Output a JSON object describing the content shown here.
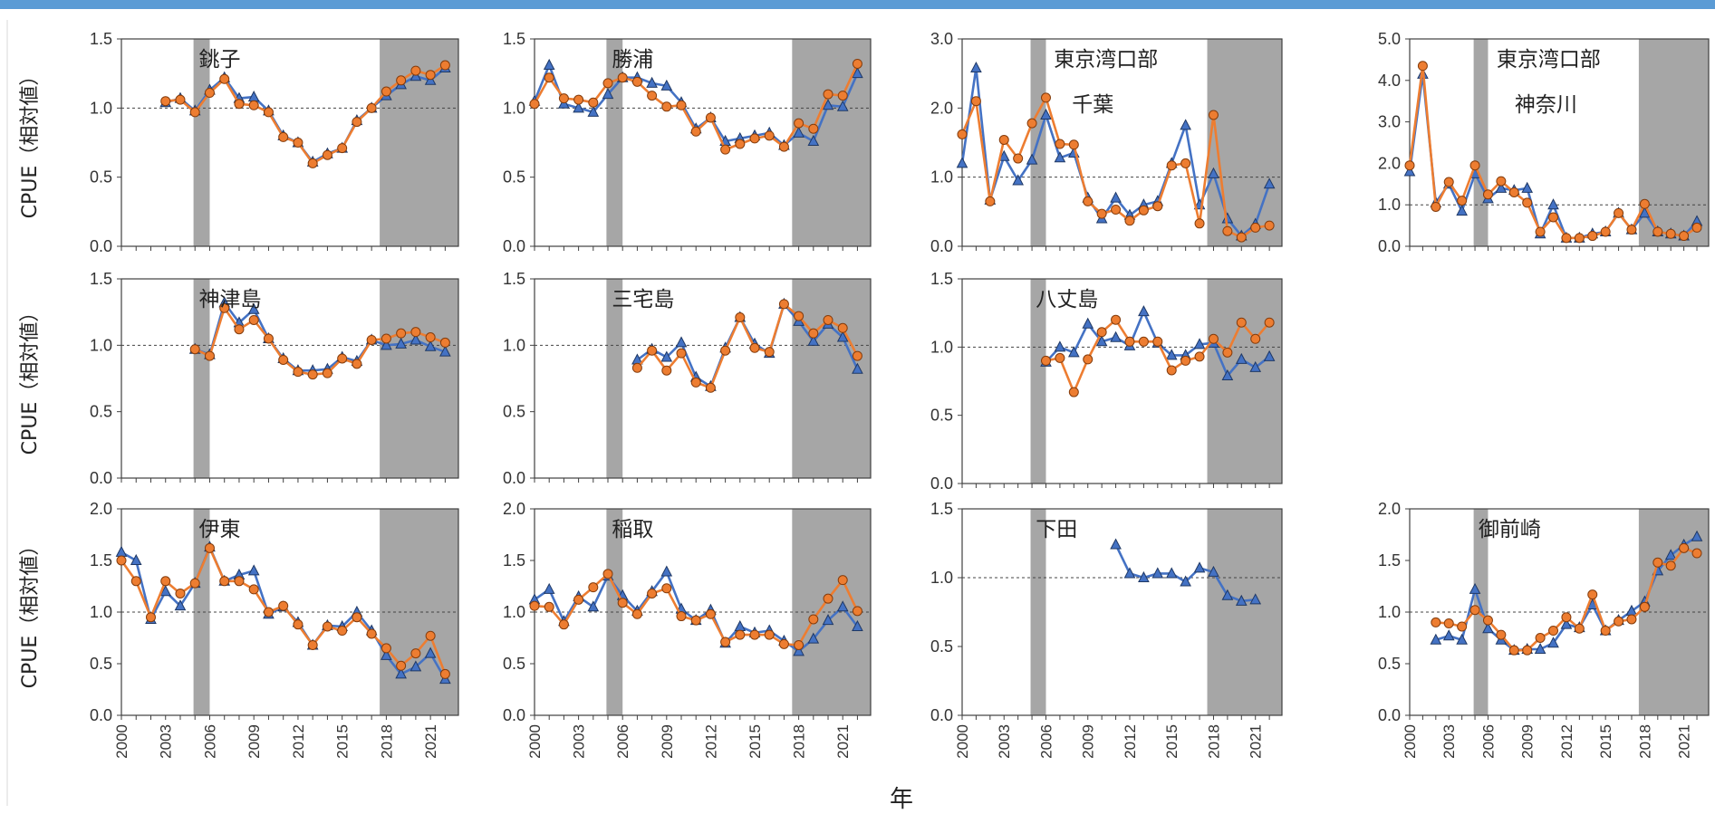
{
  "x_axis_label": "年",
  "y_axis_label": "CPUE（相対値）",
  "colors": {
    "blue": "#4472c4",
    "orange": "#ed7d31",
    "shade": "#a6a6a6"
  },
  "chart_data": [
    {
      "type": "line",
      "title": "銚子",
      "ylim": [
        0,
        1.5
      ],
      "yticks": [
        "0.0",
        "0.5",
        "1.0",
        "1.5"
      ],
      "xticks": [
        "2000",
        "2003",
        "2006",
        "2009",
        "2012",
        "2015",
        "2018",
        "2021"
      ],
      "x": [
        2000,
        2001,
        2002,
        2003,
        2004,
        2005,
        2006,
        2007,
        2008,
        2009,
        2010,
        2011,
        2012,
        2013,
        2014,
        2015,
        2016,
        2017,
        2018,
        2019,
        2020,
        2021,
        2022
      ],
      "series": [
        {
          "values": [
            null,
            null,
            null,
            1.04,
            1.07,
            0.98,
            1.13,
            1.22,
            1.07,
            1.08,
            0.98,
            0.8,
            0.75,
            0.61,
            0.67,
            0.71,
            0.91,
            1.0,
            1.09,
            1.17,
            1.23,
            1.2,
            1.29
          ]
        },
        {
          "values": [
            null,
            null,
            null,
            1.05,
            1.06,
            0.97,
            1.11,
            1.21,
            1.03,
            1.02,
            0.97,
            0.79,
            0.75,
            0.6,
            0.66,
            0.71,
            0.9,
            1.0,
            1.12,
            1.2,
            1.27,
            1.24,
            1.31
          ]
        }
      ]
    },
    {
      "type": "line",
      "title": "勝浦",
      "ylim": [
        0,
        1.5
      ],
      "yticks": [
        "0.0",
        "0.5",
        "1.0",
        "1.5"
      ],
      "xticks": [
        "2000",
        "2003",
        "2006",
        "2009",
        "2012",
        "2015",
        "2018",
        "2021"
      ],
      "x": [
        2000,
        2001,
        2002,
        2003,
        2004,
        2005,
        2006,
        2007,
        2008,
        2009,
        2010,
        2011,
        2012,
        2013,
        2014,
        2015,
        2016,
        2017,
        2018,
        2019,
        2020,
        2021,
        2022
      ],
      "series": [
        {
          "values": [
            1.05,
            1.31,
            1.03,
            1.0,
            0.97,
            1.1,
            1.22,
            1.22,
            1.18,
            1.16,
            1.04,
            0.85,
            0.93,
            0.76,
            0.78,
            0.8,
            0.82,
            0.73,
            0.82,
            0.76,
            1.02,
            1.01,
            1.25
          ]
        },
        {
          "values": [
            1.03,
            1.22,
            1.07,
            1.06,
            1.04,
            1.18,
            1.22,
            1.19,
            1.09,
            1.01,
            1.02,
            0.83,
            0.93,
            0.7,
            0.74,
            0.78,
            0.8,
            0.72,
            0.89,
            0.85,
            1.1,
            1.09,
            1.32
          ]
        }
      ]
    },
    {
      "type": "line",
      "title": "東京湾口部",
      "subtitle": "千葉",
      "ylim": [
        0,
        3.0
      ],
      "yticks": [
        "0.0",
        "1.0",
        "2.0",
        "3.0"
      ],
      "xticks": [
        "2000",
        "2003",
        "2006",
        "2009",
        "2012",
        "2015",
        "2018",
        "2021"
      ],
      "x": [
        2000,
        2001,
        2002,
        2003,
        2004,
        2005,
        2006,
        2007,
        2008,
        2009,
        2010,
        2011,
        2012,
        2013,
        2014,
        2015,
        2016,
        2017,
        2018,
        2019,
        2020,
        2021,
        2022
      ],
      "series": [
        {
          "values": [
            1.2,
            2.58,
            0.67,
            1.3,
            0.95,
            1.25,
            1.9,
            1.28,
            1.35,
            0.7,
            0.4,
            0.7,
            0.45,
            0.6,
            0.65,
            1.2,
            1.75,
            0.6,
            1.05,
            0.4,
            0.15,
            0.32,
            0.9
          ]
        },
        {
          "values": [
            1.62,
            2.1,
            0.65,
            1.54,
            1.27,
            1.78,
            2.15,
            1.48,
            1.47,
            0.65,
            0.47,
            0.53,
            0.37,
            0.52,
            0.58,
            1.17,
            1.2,
            0.33,
            1.9,
            0.22,
            0.13,
            0.27,
            0.3
          ]
        }
      ]
    },
    {
      "type": "line",
      "title": "東京湾口部",
      "subtitle": "神奈川",
      "ylim": [
        0,
        5.0
      ],
      "yticks": [
        "0.0",
        "1.0",
        "2.0",
        "3.0",
        "4.0",
        "5.0"
      ],
      "xticks": [
        "2000",
        "2003",
        "2006",
        "2009",
        "2012",
        "2015",
        "2018",
        "2021"
      ],
      "x": [
        2000,
        2001,
        2002,
        2003,
        2004,
        2005,
        2006,
        2007,
        2008,
        2009,
        2010,
        2011,
        2012,
        2013,
        2014,
        2015,
        2016,
        2017,
        2018,
        2019,
        2020,
        2021,
        2022
      ],
      "series": [
        {
          "values": [
            1.8,
            4.15,
            1.05,
            1.5,
            0.85,
            1.75,
            1.15,
            1.4,
            1.35,
            1.4,
            0.3,
            1.0,
            0.2,
            0.2,
            0.3,
            0.35,
            0.8,
            0.4,
            0.8,
            0.35,
            0.3,
            0.25,
            0.6
          ]
        },
        {
          "values": [
            1.95,
            4.35,
            0.95,
            1.55,
            1.1,
            1.95,
            1.25,
            1.57,
            1.3,
            1.05,
            0.35,
            0.7,
            0.2,
            0.2,
            0.25,
            0.35,
            0.8,
            0.4,
            1.02,
            0.35,
            0.3,
            0.25,
            0.45
          ]
        }
      ]
    },
    {
      "type": "line",
      "title": "神津島",
      "ylim": [
        0,
        1.5
      ],
      "yticks": [
        "0.0",
        "0.5",
        "1.0",
        "1.5"
      ],
      "xticks": [
        "2000",
        "2003",
        "2006",
        "2009",
        "2012",
        "2015",
        "2018",
        "2021"
      ],
      "x": [
        2000,
        2001,
        2002,
        2003,
        2004,
        2005,
        2006,
        2007,
        2008,
        2009,
        2010,
        2011,
        2012,
        2013,
        2014,
        2015,
        2016,
        2017,
        2018,
        2019,
        2020,
        2021,
        2022
      ],
      "series": [
        {
          "values": [
            null,
            null,
            null,
            null,
            null,
            0.97,
            0.93,
            1.32,
            1.17,
            1.27,
            1.05,
            0.9,
            0.81,
            0.81,
            0.82,
            0.91,
            0.88,
            1.04,
            1.0,
            1.01,
            1.04,
            0.99,
            0.95
          ]
        },
        {
          "values": [
            null,
            null,
            null,
            null,
            null,
            0.97,
            0.92,
            1.28,
            1.12,
            1.19,
            1.05,
            0.89,
            0.8,
            0.78,
            0.79,
            0.9,
            0.86,
            1.04,
            1.05,
            1.09,
            1.1,
            1.06,
            1.02
          ]
        }
      ]
    },
    {
      "type": "line",
      "title": "三宅島",
      "ylim": [
        0,
        1.5
      ],
      "yticks": [
        "0.0",
        "0.5",
        "1.0",
        "1.5"
      ],
      "xticks": [
        "2000",
        "2003",
        "2006",
        "2009",
        "2012",
        "2015",
        "2018",
        "2021"
      ],
      "x": [
        2000,
        2001,
        2002,
        2003,
        2004,
        2005,
        2006,
        2007,
        2008,
        2009,
        2010,
        2011,
        2012,
        2013,
        2014,
        2015,
        2016,
        2017,
        2018,
        2019,
        2020,
        2021,
        2022
      ],
      "series": [
        {
          "values": [
            null,
            null,
            null,
            null,
            null,
            null,
            null,
            0.89,
            0.97,
            0.91,
            1.02,
            0.76,
            0.69,
            0.98,
            1.21,
            1.01,
            0.94,
            1.31,
            1.18,
            1.03,
            1.16,
            1.06,
            0.82
          ]
        },
        {
          "values": [
            null,
            null,
            null,
            null,
            null,
            null,
            null,
            0.83,
            0.96,
            0.81,
            0.94,
            0.72,
            0.68,
            0.96,
            1.21,
            0.98,
            0.95,
            1.31,
            1.22,
            1.09,
            1.19,
            1.13,
            0.92
          ]
        }
      ]
    },
    {
      "type": "line",
      "title": "八丈島",
      "ylim": [
        0,
        1.5
      ],
      "yticks": [
        "0.0",
        "0.5",
        "1.0",
        "1.5"
      ],
      "xticks": [
        "2000",
        "2003",
        "2006",
        "2009",
        "2012",
        "2015",
        "2018",
        "2021"
      ],
      "x": [
        2000,
        2001,
        2002,
        2003,
        2004,
        2005,
        2006,
        2007,
        2008,
        2009,
        2010,
        2011,
        2012,
        2013,
        2014,
        2015,
        2016,
        2017,
        2018,
        2019,
        2020,
        2021,
        2022
      ],
      "series": [
        {
          "values": [
            null,
            null,
            null,
            null,
            null,
            null,
            0.89,
            1.0,
            0.96,
            1.17,
            1.04,
            1.07,
            1.01,
            1.26,
            1.03,
            0.94,
            0.94,
            1.02,
            1.03,
            0.79,
            0.91,
            0.85,
            0.93
          ]
        },
        {
          "values": [
            null,
            null,
            null,
            null,
            null,
            null,
            0.9,
            0.92,
            0.67,
            0.91,
            1.11,
            1.2,
            1.04,
            1.04,
            1.04,
            0.83,
            0.9,
            0.93,
            1.06,
            0.96,
            1.18,
            1.06,
            1.18
          ]
        }
      ]
    },
    {
      "type": "line",
      "title": "伊東",
      "ylim": [
        0,
        2.0
      ],
      "yticks": [
        "0.0",
        "0.5",
        "1.0",
        "1.5",
        "2.0"
      ],
      "xticks": [
        "2000",
        "2003",
        "2006",
        "2009",
        "2012",
        "2015",
        "2018",
        "2021"
      ],
      "x": [
        2000,
        2001,
        2002,
        2003,
        2004,
        2005,
        2006,
        2007,
        2008,
        2009,
        2010,
        2011,
        2012,
        2013,
        2014,
        2015,
        2016,
        2017,
        2018,
        2019,
        2020,
        2021,
        2022
      ],
      "series": [
        {
          "values": [
            1.58,
            1.5,
            0.93,
            1.2,
            1.06,
            1.28,
            1.63,
            1.3,
            1.36,
            1.4,
            0.98,
            1.05,
            0.9,
            0.68,
            0.87,
            0.86,
            1.0,
            0.82,
            0.58,
            0.4,
            0.47,
            0.6,
            0.35
          ]
        },
        {
          "values": [
            1.5,
            1.3,
            0.95,
            1.3,
            1.18,
            1.28,
            1.62,
            1.3,
            1.3,
            1.22,
            1.0,
            1.06,
            0.88,
            0.68,
            0.86,
            0.82,
            0.95,
            0.79,
            0.65,
            0.48,
            0.6,
            0.77,
            0.4
          ]
        }
      ]
    },
    {
      "type": "line",
      "title": "稲取",
      "ylim": [
        0,
        2.0
      ],
      "yticks": [
        "0.0",
        "0.5",
        "1.0",
        "1.5",
        "2.0"
      ],
      "xticks": [
        "2000",
        "2003",
        "2006",
        "2009",
        "2012",
        "2015",
        "2018",
        "2021"
      ],
      "x": [
        2000,
        2001,
        2002,
        2003,
        2004,
        2005,
        2006,
        2007,
        2008,
        2009,
        2010,
        2011,
        2012,
        2013,
        2014,
        2015,
        2016,
        2017,
        2018,
        2019,
        2020,
        2021,
        2022
      ],
      "series": [
        {
          "values": [
            1.12,
            1.22,
            0.91,
            1.15,
            1.05,
            1.35,
            1.16,
            1.01,
            1.2,
            1.39,
            1.03,
            0.92,
            1.02,
            0.7,
            0.86,
            0.8,
            0.82,
            0.72,
            0.62,
            0.74,
            0.92,
            1.05,
            0.86
          ]
        },
        {
          "values": [
            1.06,
            1.05,
            0.88,
            1.12,
            1.24,
            1.37,
            1.09,
            0.98,
            1.18,
            1.23,
            0.96,
            0.92,
            0.98,
            0.71,
            0.78,
            0.78,
            0.78,
            0.69,
            0.68,
            0.93,
            1.13,
            1.31,
            1.01
          ]
        }
      ]
    },
    {
      "type": "line",
      "title": "下田",
      "ylim": [
        0,
        1.5
      ],
      "yticks": [
        "0.0",
        "0.5",
        "1.0",
        "1.5"
      ],
      "xticks": [
        "2000",
        "2003",
        "2006",
        "2009",
        "2012",
        "2015",
        "2018",
        "2021"
      ],
      "x": [
        2000,
        2001,
        2002,
        2003,
        2004,
        2005,
        2006,
        2007,
        2008,
        2009,
        2010,
        2011,
        2012,
        2013,
        2014,
        2015,
        2016,
        2017,
        2018,
        2019,
        2020,
        2021,
        2022
      ],
      "series": [
        {
          "values": [
            null,
            null,
            null,
            null,
            null,
            null,
            null,
            null,
            null,
            null,
            null,
            1.24,
            1.03,
            1.0,
            1.03,
            1.03,
            0.97,
            1.07,
            1.04,
            0.87,
            0.83,
            0.84,
            null
          ]
        }
      ]
    },
    {
      "type": "line",
      "title": "御前崎",
      "ylim": [
        0,
        2.0
      ],
      "yticks": [
        "0.0",
        "0.5",
        "1.0",
        "1.5",
        "2.0"
      ],
      "xticks": [
        "2000",
        "2003",
        "2006",
        "2009",
        "2012",
        "2015",
        "2018",
        "2021"
      ],
      "x": [
        2000,
        2001,
        2002,
        2003,
        2004,
        2005,
        2006,
        2007,
        2008,
        2009,
        2010,
        2011,
        2012,
        2013,
        2014,
        2015,
        2016,
        2017,
        2018,
        2019,
        2020,
        2021,
        2022
      ],
      "series": [
        {
          "values": [
            null,
            null,
            0.73,
            0.77,
            0.73,
            1.22,
            0.84,
            0.73,
            0.63,
            0.64,
            0.64,
            0.7,
            0.88,
            0.85,
            1.07,
            0.82,
            0.92,
            1.01,
            1.1,
            1.4,
            1.55,
            1.65,
            1.73
          ]
        },
        {
          "values": [
            null,
            null,
            0.9,
            0.89,
            0.86,
            1.02,
            0.92,
            0.78,
            0.63,
            0.63,
            0.75,
            0.82,
            0.95,
            0.84,
            1.17,
            0.82,
            0.91,
            0.93,
            1.05,
            1.48,
            1.45,
            1.62,
            1.57
          ]
        }
      ]
    }
  ]
}
